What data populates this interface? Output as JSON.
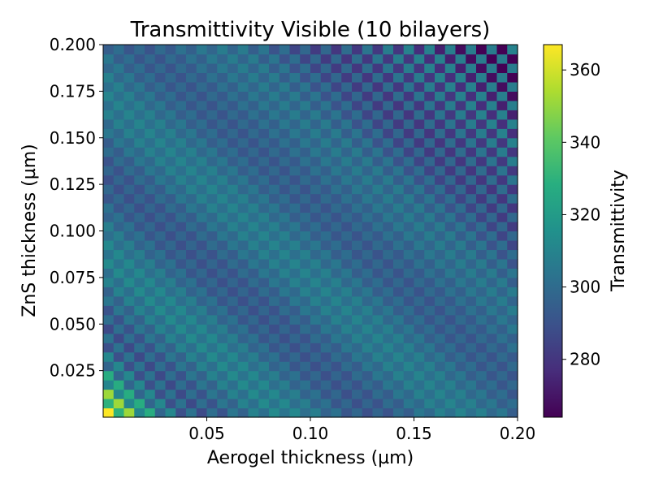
{
  "chart_data": {
    "type": "heatmap",
    "title": "Transmittivity Visible (10 bilayers)",
    "xlabel": "Aerogel thickness (µm)",
    "ylabel": "ZnS thickness (µm)",
    "colorbar_label": "Transmittivity",
    "colormap": "viridis",
    "xlim": [
      0.0,
      0.2
    ],
    "ylim": [
      0.0,
      0.2
    ],
    "x_ticks": [
      0.05,
      0.1,
      0.15,
      0.2
    ],
    "x_tick_labels": [
      "0.05",
      "0.10",
      "0.15",
      "0.20"
    ],
    "y_ticks": [
      0.025,
      0.05,
      0.075,
      0.1,
      0.125,
      0.15,
      0.175,
      0.2
    ],
    "y_tick_labels": [
      "0.025",
      "0.050",
      "0.075",
      "0.100",
      "0.125",
      "0.150",
      "0.175",
      "0.200"
    ],
    "color_range": [
      264,
      367
    ],
    "colorbar_ticks": [
      280,
      300,
      320,
      340,
      360
    ],
    "colorbar_tick_labels": [
      "280",
      "300",
      "320",
      "340",
      "360"
    ],
    "grid": false,
    "n_x": 40,
    "n_y": 40,
    "description_of_pattern": "diagonal alternating stripes; brightest (~367) at smallest thicknesses, darkest (~265) near top-right and bottom-left corners"
  }
}
